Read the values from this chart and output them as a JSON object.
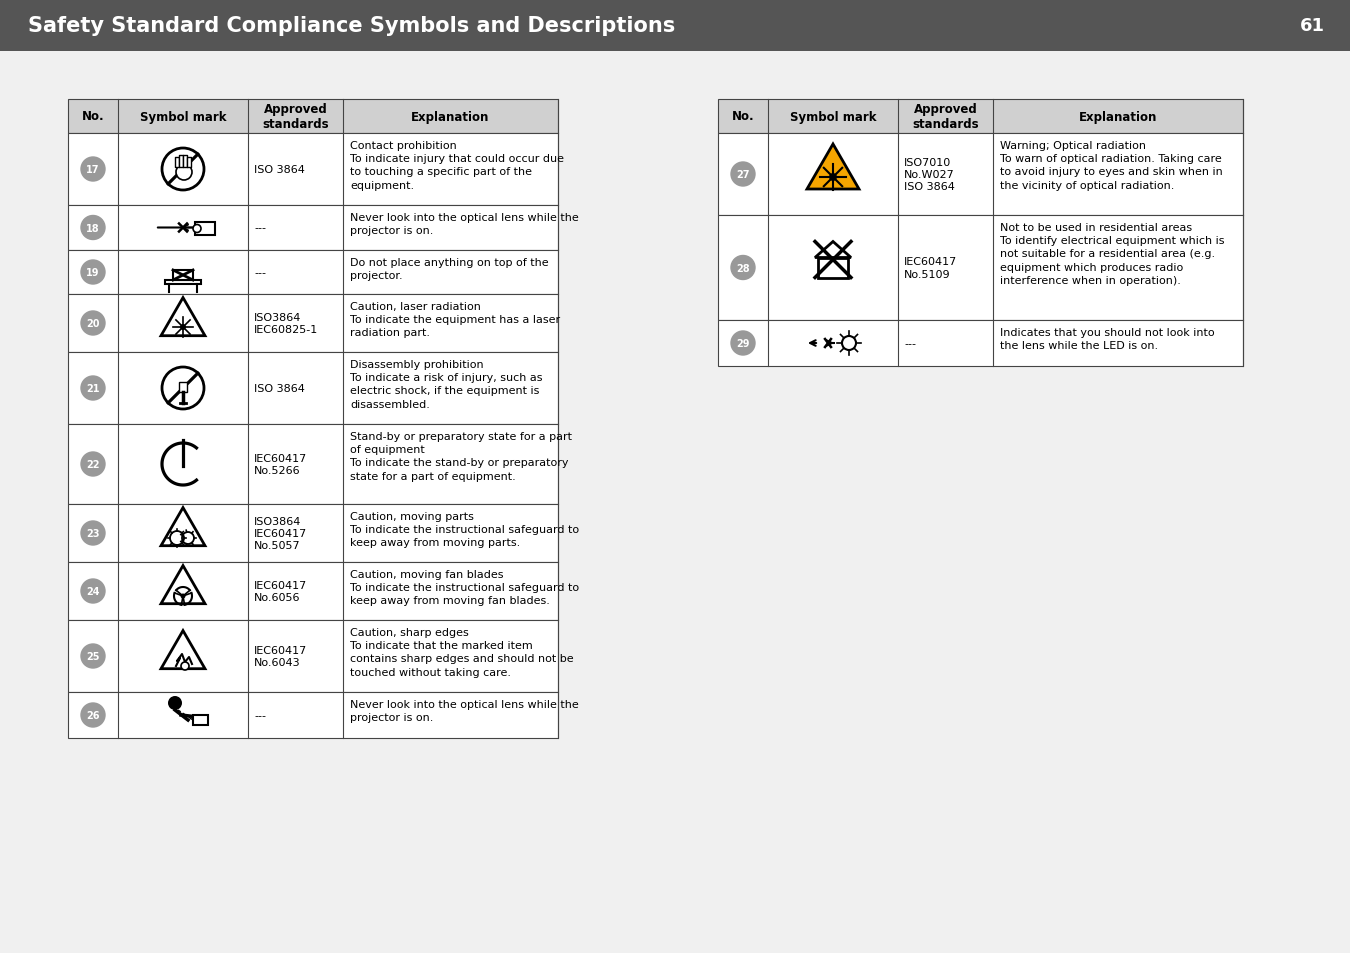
{
  "title": "Safety Standard Compliance Symbols and Descriptions",
  "page_num": "61",
  "header_bg": "#555555",
  "header_text_color": "#ffffff",
  "bg_color": "#f0f0f0",
  "table_header_bg": "#d0d0d0",
  "left_table": {
    "rows": [
      {
        "num": "17",
        "standards": "ISO 3864",
        "explanation": "Contact prohibition\nTo indicate injury that could occur due\nto touching a specific part of the\nequipment."
      },
      {
        "num": "18",
        "standards": "---",
        "explanation": "Never look into the optical lens while the\nprojector is on."
      },
      {
        "num": "19",
        "standards": "---",
        "explanation": "Do not place anything on top of the\nprojector."
      },
      {
        "num": "20",
        "standards": "ISO3864\nIEC60825-1",
        "explanation": "Caution, laser radiation\nTo indicate the equipment has a laser\nradiation part."
      },
      {
        "num": "21",
        "standards": "ISO 3864",
        "explanation": "Disassembly prohibition\nTo indicate a risk of injury, such as\nelectric shock, if the equipment is\ndisassembled."
      },
      {
        "num": "22",
        "standards": "IEC60417\nNo.5266",
        "explanation": "Stand-by or preparatory state for a part\nof equipment\nTo indicate the stand-by or preparatory\nstate for a part of equipment."
      },
      {
        "num": "23",
        "standards": "ISO3864\nIEC60417\nNo.5057",
        "explanation": "Caution, moving parts\nTo indicate the instructional safeguard to\nkeep away from moving parts."
      },
      {
        "num": "24",
        "standards": "IEC60417\nNo.6056",
        "explanation": "Caution, moving fan blades\nTo indicate the instructional safeguard to\nkeep away from moving fan blades."
      },
      {
        "num": "25",
        "standards": "IEC60417\nNo.6043",
        "explanation": "Caution, sharp edges\nTo indicate that the marked item\ncontains sharp edges and should not be\ntouched without taking care."
      },
      {
        "num": "26",
        "standards": "---",
        "explanation": "Never look into the optical lens while the\nprojector is on."
      }
    ]
  },
  "right_table": {
    "rows": [
      {
        "num": "27",
        "standards": "ISO7010\nNo.W027\nISO 3864",
        "explanation": "Warning; Optical radiation\nTo warn of optical radiation. Taking care\nto avoid injury to eyes and skin when in\nthe vicinity of optical radiation."
      },
      {
        "num": "28",
        "standards": "IEC60417\nNo.5109",
        "explanation": "Not to be used in residential areas\nTo identify electrical equipment which is\nnot suitable for a residential area (e.g.\nequipment which produces radio\ninterference when in operation)."
      },
      {
        "num": "29",
        "standards": "---",
        "explanation": "Indicates that you should not look into\nthe lens while the LED is on."
      }
    ]
  }
}
